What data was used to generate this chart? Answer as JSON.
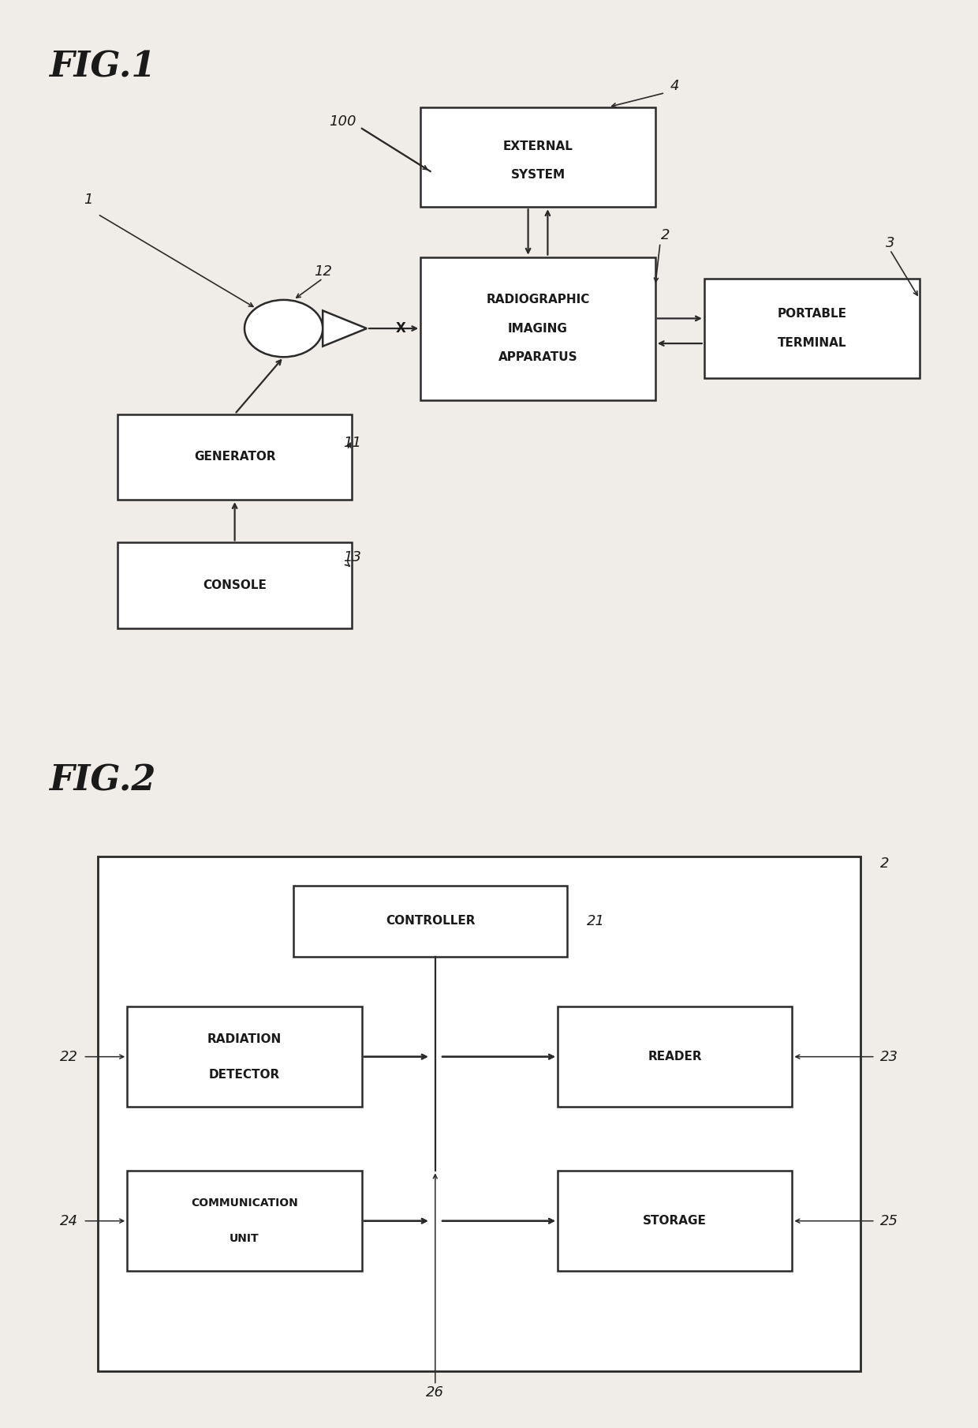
{
  "bg_color": "#f0ede8",
  "line_color": "#2a2a2a",
  "text_color": "#1a1a1a",
  "fig1": {
    "title": "FIG.1",
    "label_100": "100",
    "label_1": "1",
    "label_12": "12",
    "label_11": "11",
    "label_13": "13",
    "label_2": "2",
    "label_3": "3",
    "label_4": "4"
  },
  "fig2": {
    "title": "FIG.2",
    "label_2": "2",
    "label_21": "21",
    "label_22": "22",
    "label_23": "23",
    "label_24": "24",
    "label_25": "25",
    "label_26": "26"
  }
}
